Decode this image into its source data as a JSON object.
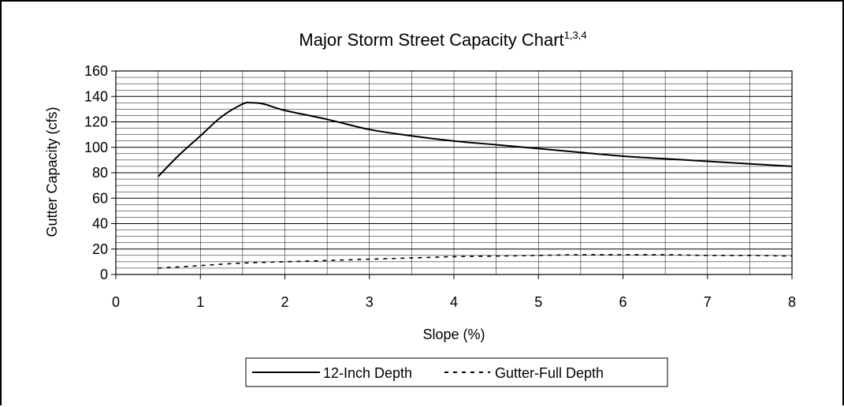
{
  "chart_data": {
    "type": "line",
    "title": "Major Storm Street Capacity Chart",
    "title_superscript": "1,3,4",
    "xlabel": "Slope (%)",
    "ylabel": "Gutter Capacity (cfs)",
    "xlim": [
      0,
      8
    ],
    "ylim": [
      0,
      160
    ],
    "x_ticks": [
      "0",
      "1",
      "2",
      "3",
      "4",
      "5",
      "6",
      "7",
      "8"
    ],
    "y_ticks": [
      "0",
      "20",
      "40",
      "60",
      "80",
      "100",
      "120",
      "140",
      "160"
    ],
    "grid": true,
    "legend_position": "bottom",
    "colors": {
      "line": "#000000",
      "grid": "#000000",
      "background": "#ffffff"
    },
    "series": [
      {
        "name": "12-Inch Depth",
        "style": "solid",
        "x": [
          0.5,
          0.75,
          1.0,
          1.25,
          1.5,
          1.6,
          1.75,
          2.0,
          2.5,
          3.0,
          3.5,
          4.0,
          4.5,
          5.0,
          5.5,
          6.0,
          6.5,
          7.0,
          7.5,
          8.0
        ],
        "y": [
          77,
          94,
          109,
          124,
          134,
          135,
          134,
          129,
          122,
          114,
          109,
          105,
          102,
          99,
          96,
          93,
          91,
          89,
          87,
          85
        ]
      },
      {
        "name": "Gutter-Full Depth",
        "style": "dashed",
        "x": [
          0.5,
          1.0,
          1.5,
          2.0,
          2.5,
          3.0,
          3.5,
          4.0,
          4.5,
          5.0,
          5.5,
          6.0,
          6.5,
          7.0,
          7.5,
          8.0
        ],
        "y": [
          5,
          7,
          9,
          10,
          11,
          12,
          13,
          14,
          14.5,
          15,
          15.5,
          15.5,
          15.5,
          15,
          15,
          14.5
        ]
      }
    ]
  }
}
